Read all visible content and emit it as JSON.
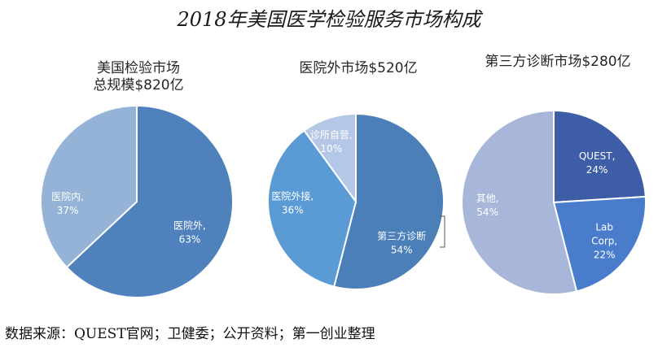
{
  "title": "2018年美国医学检验服务市场构成",
  "source": "数据来源：QUEST官网；卫健委；公开资料；第一创业整理",
  "chart_data": [
    {
      "type": "pie",
      "title_lines": [
        "美国检验市场",
        "总规模$820亿"
      ],
      "slices": [
        {
          "label_lines": [
            "医院外,",
            "63%"
          ],
          "value": 63,
          "color": "#4f81bd"
        },
        {
          "label_lines": [
            "医院内,",
            "37%"
          ],
          "value": 37,
          "color": "#95b3d7"
        }
      ]
    },
    {
      "type": "pie",
      "title_lines": [
        "医院外市场$520亿"
      ],
      "slices": [
        {
          "label_lines": [
            "第三方诊断",
            "54%"
          ],
          "value": 54,
          "color": "#4a7fb8"
        },
        {
          "label_lines": [
            "医院外接,",
            "36%"
          ],
          "value": 36,
          "color": "#5b9bd5"
        },
        {
          "label_lines": [
            "诊所自营,",
            "10%"
          ],
          "value": 10,
          "color": "#b4c7e7"
        }
      ]
    },
    {
      "type": "pie",
      "title_lines": [
        "第三方诊断市场$280亿"
      ],
      "slices": [
        {
          "label_lines": [
            "QUEST,",
            "24%"
          ],
          "value": 24,
          "color": "#3d5ea6"
        },
        {
          "label_lines": [
            "Lab",
            "Corp,",
            "22%"
          ],
          "value": 22,
          "color": "#4a7ccc"
        },
        {
          "label_lines": [
            "其他,",
            "54%"
          ],
          "value": 54,
          "color": "#a8b6da"
        }
      ]
    }
  ]
}
